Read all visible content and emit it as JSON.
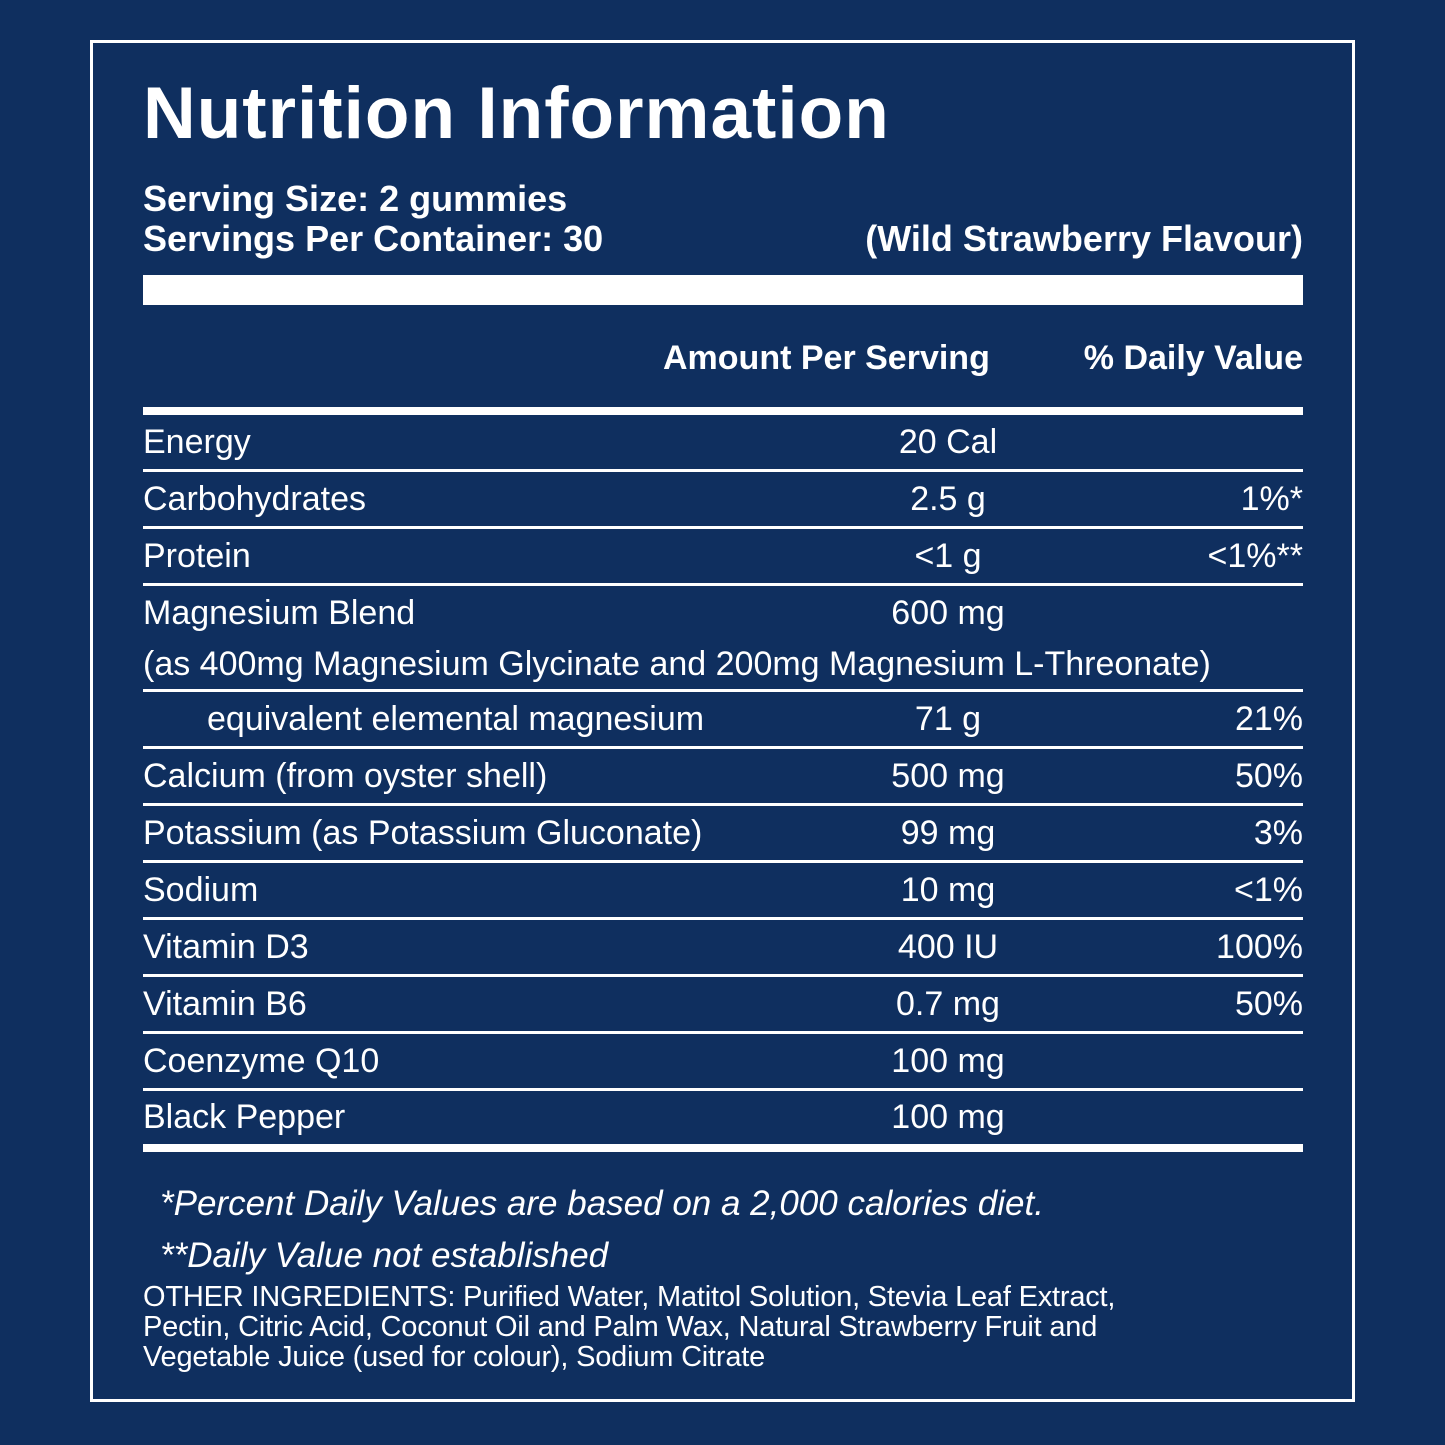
{
  "colors": {
    "background": "#0f2f5f",
    "text": "#ffffff"
  },
  "header": {
    "title": "Nutrition Information",
    "serving_size": "Serving Size: 2 gummies",
    "servings_per_container": "Servings Per Container: 30",
    "flavour": "(Wild Strawberry Flavour)"
  },
  "table": {
    "columns": {
      "amount": "Amount Per Serving",
      "daily_value": "% Daily Value"
    },
    "rows": [
      {
        "name": "Energy",
        "amount": "20 Cal",
        "dv": ""
      },
      {
        "name": "Carbohydrates",
        "amount": "2.5 g",
        "dv": "1%*"
      },
      {
        "name": "Protein",
        "amount": "<1 g",
        "dv": "<1%**"
      },
      {
        "name": "Magnesium Blend",
        "amount": "600 mg",
        "dv": "",
        "note": "(as 400mg Magnesium Glycinate and 200mg Magnesium L-Threonate)"
      },
      {
        "name": "equivalent elemental magnesium",
        "amount": "71 g",
        "dv": "21%"
      },
      {
        "name": "Calcium (from oyster shell)",
        "amount": "500 mg",
        "dv": "50%"
      },
      {
        "name": "Potassium (as Potassium Gluconate)",
        "amount": "99 mg",
        "dv": "3%"
      },
      {
        "name": "Sodium",
        "amount": "10 mg",
        "dv": "<1%"
      },
      {
        "name": "Vitamin D3",
        "amount": "400 IU",
        "dv": "100%"
      },
      {
        "name": "Vitamin B6",
        "amount": "0.7 mg",
        "dv": "50%"
      },
      {
        "name": "Coenzyme Q10",
        "amount": "100 mg",
        "dv": ""
      },
      {
        "name": "Black Pepper",
        "amount": "100 mg",
        "dv": ""
      }
    ]
  },
  "footnotes": {
    "line1": "*Percent Daily Values are based on a 2,000 calories diet.",
    "line2": "**Daily Value not established"
  },
  "other_ingredients": {
    "lines": [
      "OTHER INGREDIENTS: Purified Water, Matitol Solution, Stevia Leaf Extract,",
      "Pectin, Citric Acid, Coconut Oil and Palm Wax, Natural Strawberry Fruit and",
      "Vegetable Juice (used for colour), Sodium Citrate"
    ]
  }
}
